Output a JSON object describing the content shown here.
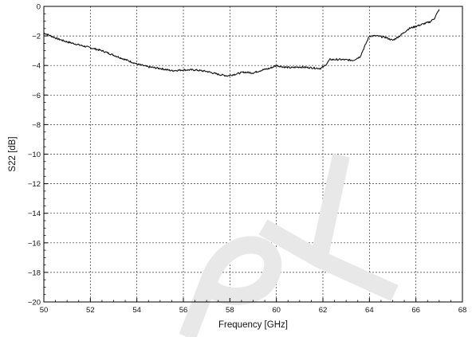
{
  "chart_data": {
    "type": "line",
    "title": "",
    "xlabel": "Frequency [GHz]",
    "ylabel": "S22 [dB]",
    "xlim": [
      50,
      68
    ],
    "ylim": [
      -20,
      0
    ],
    "xticks": [
      50,
      52,
      54,
      56,
      58,
      60,
      62,
      64,
      66,
      68
    ],
    "yticks": [
      0,
      -2,
      -4,
      -6,
      -8,
      -10,
      -12,
      -14,
      -16,
      -18,
      -20
    ],
    "grid": true,
    "legend": "none",
    "series": [
      {
        "x": [
          50.0,
          50.3,
          50.6,
          51.0,
          51.5,
          52.0,
          52.5,
          53.0,
          53.5,
          54.0,
          54.5,
          55.0,
          55.5,
          56.0,
          56.5,
          57.0,
          57.5,
          57.9,
          58.2,
          58.6,
          59.0,
          59.4,
          59.7,
          60.0,
          60.3,
          60.6,
          61.0,
          61.5,
          61.9,
          62.1,
          62.3,
          62.8,
          63.3,
          63.6,
          63.8,
          64.0,
          64.3,
          64.7,
          65.0,
          65.3,
          65.7,
          66.0,
          66.3,
          66.6,
          66.8,
          67.0
        ],
        "y": [
          -1.8,
          -2.0,
          -2.2,
          -2.4,
          -2.6,
          -2.8,
          -3.0,
          -3.3,
          -3.6,
          -3.9,
          -4.1,
          -4.2,
          -4.35,
          -4.3,
          -4.3,
          -4.4,
          -4.6,
          -4.7,
          -4.6,
          -4.45,
          -4.5,
          -4.3,
          -4.2,
          -4.0,
          -4.1,
          -4.15,
          -4.1,
          -4.15,
          -4.2,
          -4.0,
          -3.6,
          -3.6,
          -3.65,
          -3.4,
          -2.7,
          -2.0,
          -2.0,
          -2.1,
          -2.3,
          -2.0,
          -1.5,
          -1.35,
          -1.2,
          -1.05,
          -0.8,
          -0.2
        ],
        "color": "#111111"
      }
    ]
  },
  "watermark": {
    "text": "PY",
    "color": "#e8e8e8"
  }
}
